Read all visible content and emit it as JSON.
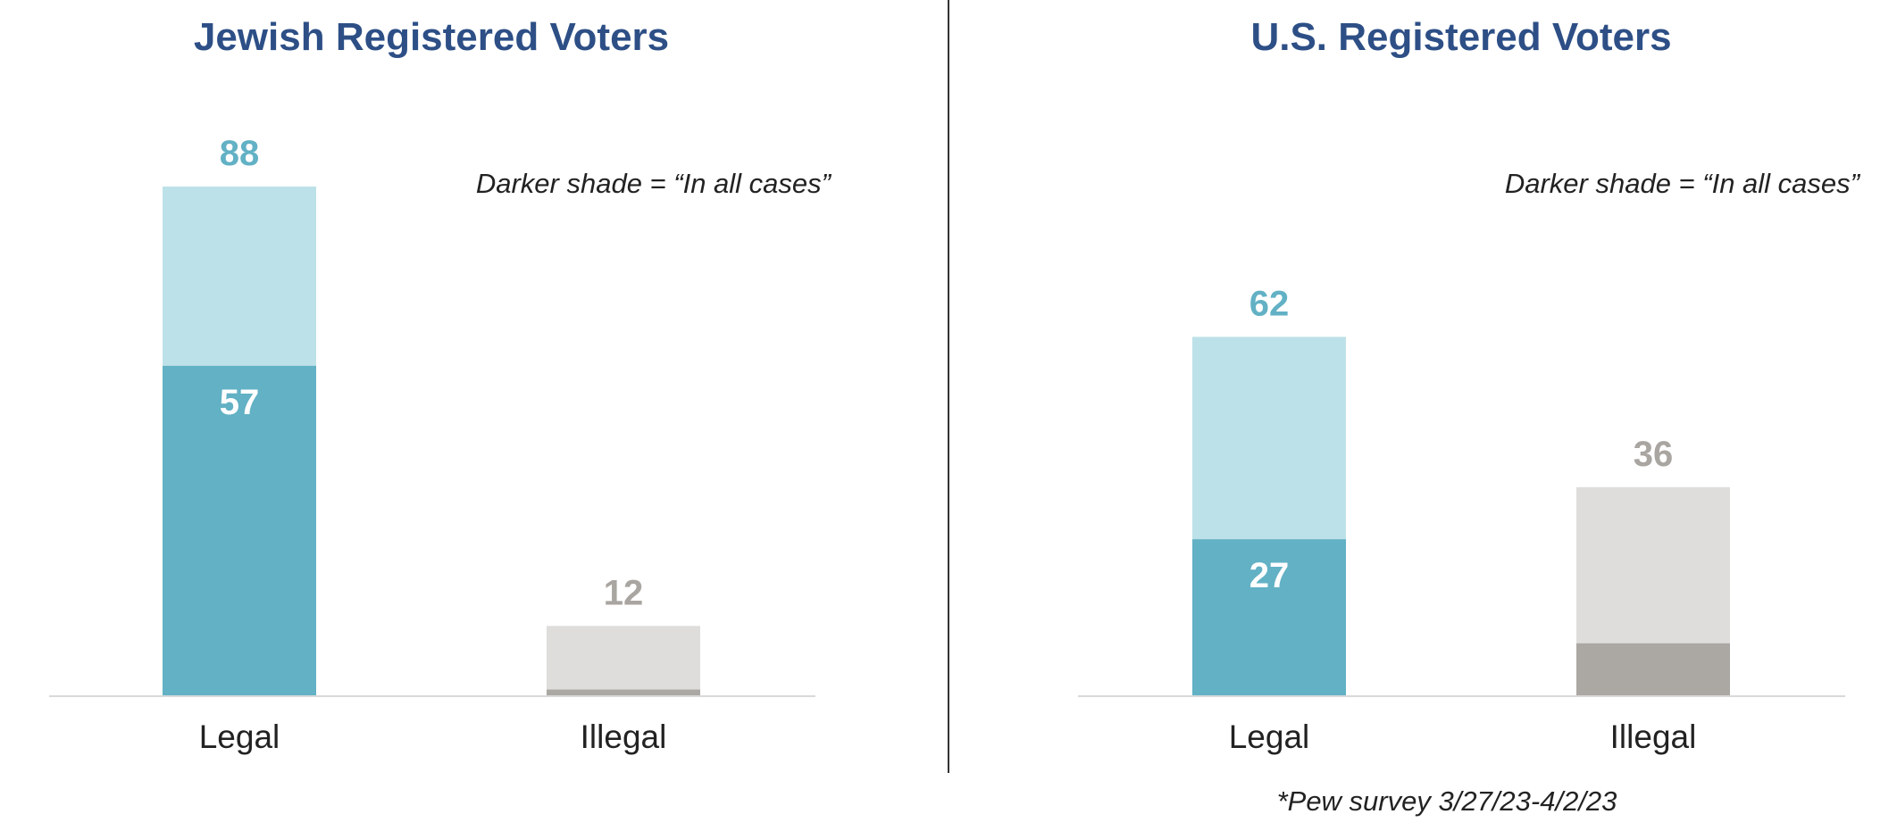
{
  "colors": {
    "title": "#2d4f86",
    "legal_light": "#bde1e8",
    "legal_dark": "#62b1c5",
    "illegal_light": "#dedddc",
    "illegal_dark": "#aba7a3",
    "legal_total_label": "#62b1c5",
    "illegal_total_label": "#a9a5a1",
    "inner_label": "#ffffff",
    "axis": "#d9d9d9",
    "divider": "#333333"
  },
  "chart_data": [
    {
      "type": "bar",
      "stacked": true,
      "title": "Jewish Registered Voters",
      "annotation": "Darker shade = “In all cases”",
      "categories": [
        "Legal",
        "Illegal"
      ],
      "series": [
        {
          "name": "In all cases",
          "values": [
            57,
            1
          ]
        },
        {
          "values": [
            31,
            11
          ]
        }
      ],
      "totals": [
        88,
        12
      ],
      "data_labels": {
        "total": [
          "88",
          "12"
        ],
        "inner": [
          "57",
          ""
        ]
      },
      "ylim": [
        0,
        88
      ],
      "grid": false
    },
    {
      "type": "bar",
      "stacked": true,
      "title": "U.S. Registered Voters",
      "annotation": "Darker shade = “In all cases”",
      "categories": [
        "Legal",
        "Illegal"
      ],
      "series": [
        {
          "name": "In all cases",
          "values": [
            27,
            9
          ]
        },
        {
          "values": [
            35,
            27
          ]
        }
      ],
      "totals": [
        62,
        36
      ],
      "data_labels": {
        "total": [
          "62",
          "36"
        ],
        "inner": [
          "27",
          ""
        ]
      },
      "ylim": [
        0,
        88
      ],
      "grid": false
    }
  ],
  "footnote": "*Pew survey 3/27/23-4/2/23"
}
